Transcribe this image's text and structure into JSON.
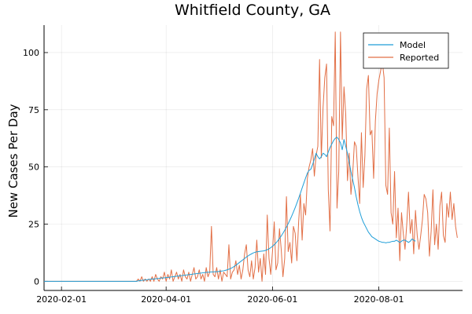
{
  "chart_data": {
    "type": "line",
    "title": "Whitfield County, GA",
    "xlabel": "",
    "ylabel": "New Cases Per Day",
    "xlim": [
      "2020-01-22",
      "2020-09-18"
    ],
    "ylim": [
      -4,
      112
    ],
    "grid": true,
    "legend_position": "top-right",
    "x_ticks": [
      "2020-02-01",
      "2020-04-01",
      "2020-06-01",
      "2020-08-01"
    ],
    "y_ticks": [
      0,
      25,
      50,
      75,
      100
    ],
    "series": [
      {
        "name": "Model",
        "color": "#1f9ed8",
        "start_date": "2020-01-22",
        "values": [
          0,
          0,
          0,
          0,
          0,
          0,
          0,
          0,
          0,
          0,
          0,
          0,
          0,
          0,
          0,
          0,
          0,
          0,
          0,
          0,
          0,
          0,
          0,
          0,
          0,
          0,
          0,
          0,
          0,
          0,
          0,
          0,
          0,
          0,
          0,
          0,
          0,
          0,
          0,
          0,
          0,
          0,
          0,
          0,
          0,
          0,
          0,
          0,
          0,
          0,
          0,
          0,
          0,
          0,
          0.2,
          0.3,
          0.4,
          0.5,
          0.6,
          0.7,
          0.8,
          0.9,
          1.0,
          1.0,
          1.1,
          1.2,
          1.3,
          1.4,
          1.5,
          1.5,
          1.6,
          1.7,
          1.8,
          1.9,
          2.0,
          2.1,
          2.2,
          2.3,
          2.4,
          2.5,
          2.6,
          2.7,
          2.8,
          2.9,
          3.0,
          3.1,
          3.2,
          3.3,
          3.4,
          3.5,
          3.6,
          3.7,
          3.8,
          3.9,
          4.0,
          4.0,
          4.1,
          4.1,
          4.2,
          4.2,
          4.3,
          4.4,
          4.5,
          4.6,
          4.8,
          5.0,
          5.3,
          5.6,
          6.0,
          6.5,
          7.0,
          7.6,
          8.2,
          8.8,
          9.4,
          10.0,
          10.6,
          11.1,
          11.6,
          12.0,
          12.4,
          12.7,
          12.9,
          13.0,
          13.1,
          13.2,
          13.3,
          13.5,
          13.8,
          14.2,
          14.7,
          15.3,
          16.0,
          16.8,
          17.7,
          18.7,
          19.8,
          21.0,
          22.3,
          23.7,
          25.2,
          26.8,
          28.5,
          30.3,
          32.2,
          34.2,
          36.3,
          38.5,
          40.8,
          43.0,
          45.2,
          47.3,
          48.5,
          49.0,
          51.0,
          53.5,
          56.0,
          54.5,
          53.5,
          54.5,
          56.0,
          55.5,
          54.5,
          56.5,
          58.5,
          60.0,
          61.5,
          62.5,
          63.0,
          62.0,
          60.5,
          57.5,
          62.0,
          59.0,
          56.0,
          52.0,
          48.0,
          44.5,
          41.0,
          37.0,
          33.5,
          30.5,
          28.0,
          26.0,
          24.5,
          23.0,
          21.5,
          20.5,
          19.5,
          19.0,
          18.5,
          18.0,
          17.5,
          17.3,
          17.0,
          17.0,
          16.8,
          17.0,
          17.0,
          17.3,
          17.5,
          17.5,
          18.0,
          17.5,
          17.0,
          17.5,
          18.0,
          18.0,
          17.5,
          17.0,
          17.5,
          18.5,
          18.0,
          17.5
        ]
      },
      {
        "name": "Reported",
        "color": "#e26f46",
        "start_date": "2020-01-22",
        "values": [
          0,
          0,
          0,
          0,
          0,
          0,
          0,
          0,
          0,
          0,
          0,
          0,
          0,
          0,
          0,
          0,
          0,
          0,
          0,
          0,
          0,
          0,
          0,
          0,
          0,
          0,
          0,
          0,
          0,
          0,
          0,
          0,
          0,
          0,
          0,
          0,
          0,
          0,
          0,
          0,
          0,
          0,
          0,
          0,
          0,
          0,
          0,
          0,
          0,
          0,
          0,
          0,
          0,
          0,
          1,
          0,
          2,
          0,
          1,
          0,
          1,
          0,
          2,
          0,
          3,
          1,
          0,
          2,
          1,
          4,
          0,
          3,
          1,
          5,
          0,
          2,
          4,
          1,
          3,
          0,
          5,
          2,
          1,
          4,
          0,
          3,
          6,
          1,
          2,
          5,
          1,
          3,
          0,
          6,
          2,
          4,
          24,
          3,
          2,
          6,
          1,
          5,
          0,
          4,
          3,
          2,
          16,
          1,
          4,
          5,
          9,
          3,
          7,
          1,
          5,
          12,
          16,
          5,
          2,
          9,
          1,
          6,
          18,
          4,
          10,
          0,
          12,
          3,
          29,
          10,
          3,
          13,
          26,
          5,
          8,
          23,
          14,
          2,
          10,
          37,
          13,
          17,
          8,
          24,
          21,
          9,
          26,
          38,
          18,
          34,
          29,
          45,
          50,
          53,
          58,
          46,
          55,
          59,
          97,
          54,
          76,
          89,
          95,
          40,
          22,
          72,
          68,
          109,
          32,
          48,
          109,
          62,
          85,
          73,
          44,
          56,
          38,
          47,
          61,
          59,
          46,
          34,
          65,
          41,
          55,
          84,
          90,
          64,
          66,
          45,
          70,
          82,
          88,
          92,
          96,
          89,
          42,
          38,
          67,
          30,
          25,
          48,
          19,
          32,
          9,
          30,
          21,
          14,
          25,
          39,
          21,
          27,
          12,
          31,
          20,
          14,
          20,
          27,
          38,
          36,
          30,
          11,
          22,
          40,
          16,
          25,
          14,
          33,
          39,
          20,
          17,
          34,
          28,
          39,
          27,
          34,
          24,
          19
        ]
      }
    ]
  }
}
